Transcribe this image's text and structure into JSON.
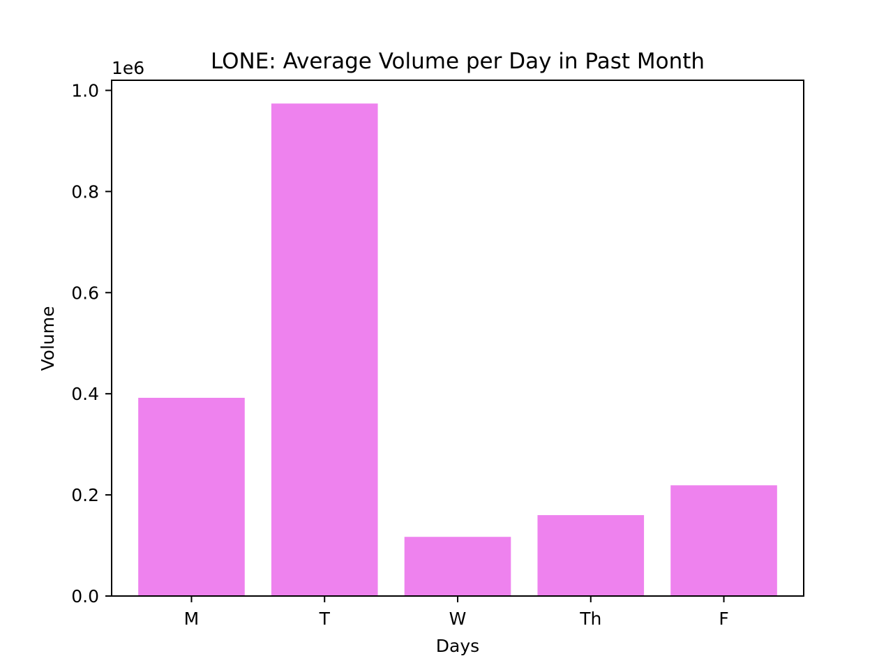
{
  "chart_data": {
    "type": "bar",
    "title": "LONE: Average Volume per Day in Past Month",
    "xlabel": "Days",
    "ylabel": "Volume",
    "categories": [
      "M",
      "T",
      "W",
      "Th",
      "F"
    ],
    "values": [
      392000,
      974000,
      117000,
      160000,
      219000
    ],
    "ylim": [
      0,
      1020000
    ],
    "y_scale_factor": 1000000,
    "y_offset_label": "1e6",
    "y_ticks": [
      0,
      200000,
      400000,
      600000,
      800000,
      1000000
    ],
    "y_tick_labels": [
      "0.0",
      "0.2",
      "0.4",
      "0.6",
      "0.8",
      "1.0"
    ],
    "bar_color": "#ee82ee",
    "grid": false,
    "legend": "none"
  }
}
